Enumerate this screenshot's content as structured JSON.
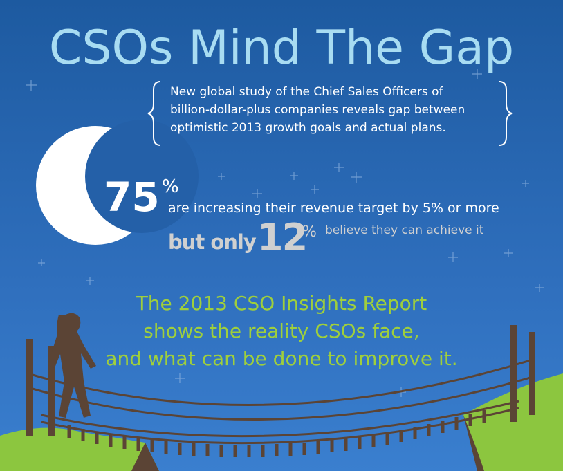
{
  "title": "CSOs Mind The Gap",
  "intro": {
    "lines": [
      "New global study of the Chief Sales Officers of",
      "billion-dollar-plus companies reveals gap between",
      "optimistic 2013 growth goals and actual plans."
    ]
  },
  "stat_increase": {
    "value": 75,
    "unit": "%",
    "text": "are increasing their revenue target by 5% or more"
  },
  "stat_achieve": {
    "lead": "but only",
    "value": 12,
    "unit": "%",
    "text": "believe they can achieve it"
  },
  "report": {
    "lines": [
      "The 2013 CSO Insights Report",
      "shows the reality CSOs face,",
      "and what can be done to improve it."
    ]
  }
}
